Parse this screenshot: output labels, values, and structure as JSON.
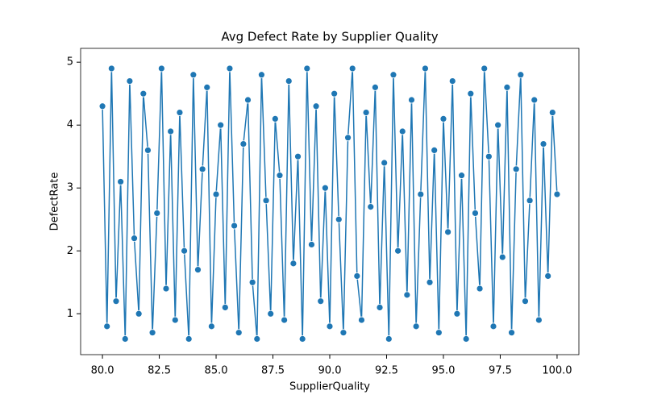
{
  "chart_data": {
    "type": "line",
    "title": "Avg Defect Rate by Supplier Quality",
    "x_label": "SupplierQuality",
    "y_label": "DefectRate",
    "color": "#1f77b4",
    "markers": true,
    "x": [
      80.0,
      80.2,
      80.4,
      80.6,
      80.8,
      81.0,
      81.2,
      81.4,
      81.6,
      81.8,
      82.0,
      82.2,
      82.4,
      82.6,
      82.8,
      83.0,
      83.2,
      83.4,
      83.6,
      83.8,
      84.0,
      84.2,
      84.4,
      84.6,
      84.8,
      85.0,
      85.2,
      85.4,
      85.6,
      85.8,
      86.0,
      86.2,
      86.4,
      86.6,
      86.8,
      87.0,
      87.2,
      87.4,
      87.6,
      87.8,
      88.0,
      88.2,
      88.4,
      88.6,
      88.8,
      89.0,
      89.2,
      89.4,
      89.6,
      89.8,
      90.0,
      90.2,
      90.4,
      90.6,
      90.8,
      91.0,
      91.2,
      91.4,
      91.6,
      91.8,
      92.0,
      92.2,
      92.4,
      92.6,
      92.8,
      93.0,
      93.2,
      93.4,
      93.6,
      93.8,
      94.0,
      94.2,
      94.4,
      94.6,
      94.8,
      95.0,
      95.2,
      95.4,
      95.6,
      95.8,
      96.0,
      96.2,
      96.4,
      96.6,
      96.8,
      97.0,
      97.2,
      97.4,
      97.6,
      97.8,
      98.0,
      98.2,
      98.4,
      98.6,
      98.8,
      99.0,
      99.2,
      99.4,
      99.6,
      99.8,
      100.0
    ],
    "values": [
      4.3,
      0.8,
      4.9,
      1.2,
      3.1,
      0.6,
      4.7,
      2.2,
      1.0,
      4.5,
      3.6,
      0.7,
      2.6,
      4.9,
      1.4,
      3.9,
      0.9,
      4.2,
      2.0,
      0.6,
      4.8,
      1.7,
      3.3,
      4.6,
      0.8,
      2.9,
      4.0,
      1.1,
      4.9,
      2.4,
      0.7,
      3.7,
      4.4,
      1.5,
      0.6,
      4.8,
      2.8,
      1.0,
      4.1,
      3.2,
      0.9,
      4.7,
      1.8,
      3.5,
      0.6,
      4.9,
      2.1,
      4.3,
      1.2,
      3.0,
      0.8,
      4.5,
      2.5,
      0.7,
      3.8,
      4.9,
      1.6,
      0.9,
      4.2,
      2.7,
      4.6,
      1.1,
      3.4,
      0.6,
      4.8,
      2.0,
      3.9,
      1.3,
      4.4,
      0.8,
      2.9,
      4.9,
      1.5,
      3.6,
      0.7,
      4.1,
      2.3,
      4.7,
      1.0,
      3.2,
      0.6,
      4.5,
      2.6,
      1.4,
      4.9,
      3.5,
      0.8,
      4.0,
      1.9,
      4.6,
      0.7,
      3.3,
      4.8,
      1.2,
      2.8,
      4.4,
      0.9,
      3.7,
      1.6,
      4.2,
      2.9
    ],
    "xlim": [
      79.04,
      100.96
    ],
    "xticks": [
      {
        "value": 80,
        "label": "80.0"
      },
      82.5,
      {
        "value": 85,
        "label": "85.0"
      },
      87.5,
      {
        "value": 90,
        "label": "90.0"
      },
      92.5,
      {
        "value": 95,
        "label": "95.0"
      },
      97.5,
      {
        "value": 100,
        "label": "100.0"
      }
    ],
    "ylim": [
      0.35,
      5.22
    ],
    "yticks": [
      1,
      2,
      3,
      4,
      5
    ],
    "grid": false
  }
}
